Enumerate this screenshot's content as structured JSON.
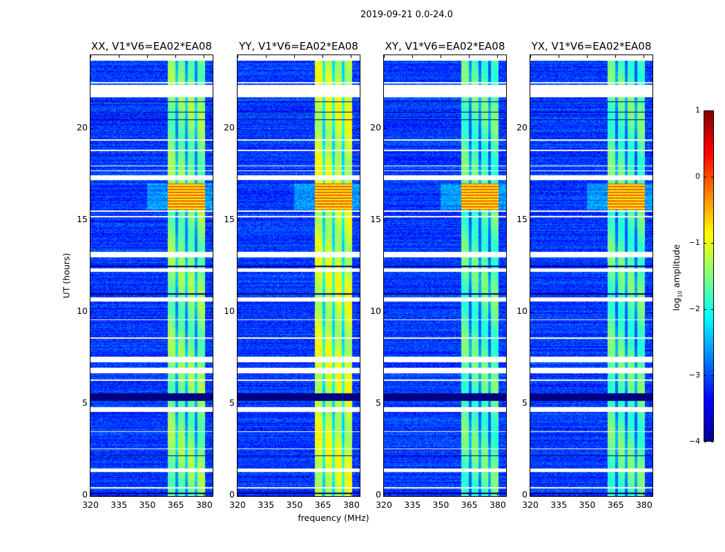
{
  "figure": {
    "suptitle": "2019-09-21 0.0-24.0",
    "ylabel": "UT (hours)",
    "xlabel": "frequency (MHz)",
    "colorbar": {
      "label_prefix": "log",
      "label_sub": "10",
      "label_suffix": " amplitude",
      "ticks": [
        "1",
        "0",
        "−1",
        "−2",
        "−3",
        "−4"
      ],
      "tick_values": [
        1,
        0,
        -1,
        -2,
        -3,
        -4
      ],
      "range": [
        -4,
        1
      ],
      "colormap": "jet"
    }
  },
  "chart_data": {
    "type": "heatmap",
    "panels": [
      {
        "title": "XX, V1*V6=EA02*EA08",
        "band_level": -1.5
      },
      {
        "title": "YY, V1*V6=EA02*EA08",
        "band_level": -1.1
      },
      {
        "title": "XY, V1*V6=EA02*EA08",
        "band_level": -1.7
      },
      {
        "title": "YX, V1*V6=EA02*EA08",
        "band_level": -1.7
      }
    ],
    "x": {
      "label": "frequency (MHz)",
      "lim": [
        320,
        384.4
      ],
      "ticks": [
        320,
        335,
        350,
        365,
        380
      ],
      "tick_labels": [
        "320",
        "335",
        "350",
        "365",
        "380"
      ]
    },
    "y": {
      "label": "UT (hours)",
      "lim": [
        0,
        24
      ],
      "ticks": [
        0,
        5,
        10,
        15,
        20
      ],
      "tick_labels": [
        "0",
        "5",
        "10",
        "15",
        "20"
      ]
    },
    "z": {
      "label": "log10 amplitude",
      "lim": [
        -4,
        1
      ]
    },
    "background_level": -3.1,
    "signal_band_mhz": [
      360.7,
      380.4
    ],
    "band_notches_mhz": [
      365.5,
      370.5,
      375.6
    ],
    "rfi_interval_hours": [
      15.6,
      17.0
    ],
    "rfi_level": 0.0,
    "flagged_hours": [
      [
        23.7,
        24.0
      ],
      [
        22.45,
        22.52
      ],
      [
        21.7,
        22.4
      ],
      [
        19.33,
        19.4
      ],
      [
        18.78,
        18.84
      ],
      [
        17.95,
        18.0
      ],
      [
        17.68,
        17.74
      ],
      [
        17.2,
        17.45
      ],
      [
        15.47,
        15.55
      ],
      [
        15.17,
        15.24
      ],
      [
        13.0,
        13.3
      ],
      [
        12.2,
        12.4
      ],
      [
        10.6,
        10.8
      ],
      [
        9.57,
        9.63
      ],
      [
        8.57,
        8.63
      ],
      [
        7.3,
        7.6
      ],
      [
        6.7,
        7.0
      ],
      [
        6.27,
        6.33
      ],
      [
        4.6,
        4.85
      ],
      [
        3.48,
        3.54
      ],
      [
        2.55,
        2.61
      ],
      [
        1.3,
        1.5
      ],
      [
        0.42,
        0.48
      ]
    ],
    "dropout_hours": [
      [
        21.45,
        21.5
      ],
      [
        20.88,
        20.93
      ],
      [
        20.47,
        20.52
      ],
      [
        12.48,
        12.53
      ],
      [
        10.98,
        11.04
      ],
      [
        5.2,
        5.6
      ],
      [
        2.18,
        2.22
      ],
      [
        0.12,
        0.18
      ]
    ]
  }
}
